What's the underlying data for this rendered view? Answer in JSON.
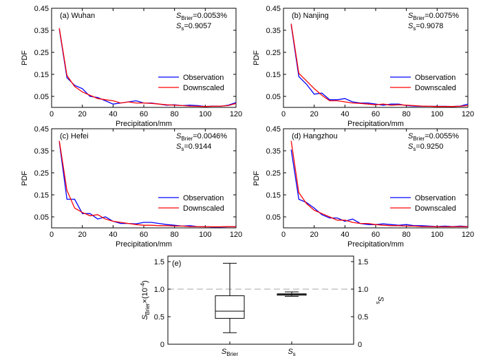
{
  "colors": {
    "observation": "#0000ff",
    "downscaled": "#ff0000",
    "axis": "#000000",
    "reference": "#a6a6a6"
  },
  "chart_data": [
    {
      "type": "line",
      "panel_label": "(a) Wuhan",
      "ann_brier_prefix": "S",
      "ann_brier_sub": "Brier",
      "ann_brier_value": "=0.0053%",
      "ann_ss_prefix": "S",
      "ann_ss_sub": "s",
      "ann_ss_value": "=0.9057",
      "xlabel": "Precipitation/mm",
      "ylabel": "PDF",
      "xlim": [
        0,
        120
      ],
      "ylim": [
        0,
        0.45
      ],
      "xticks": [
        0,
        20,
        40,
        60,
        80,
        100,
        120
      ],
      "yticks": [
        0.05,
        0.15,
        0.25,
        0.35,
        0.45
      ],
      "legend_position": "right",
      "series": [
        {
          "name": "Observation",
          "x": [
            5,
            10,
            15,
            20,
            25,
            30,
            35,
            40,
            45,
            50,
            55,
            60,
            65,
            70,
            75,
            80,
            85,
            90,
            95,
            100,
            105,
            110,
            115,
            120
          ],
          "y": [
            0.355,
            0.135,
            0.1,
            0.085,
            0.05,
            0.045,
            0.03,
            0.015,
            0.02,
            0.025,
            0.03,
            0.02,
            0.02,
            0.015,
            0.01,
            0.012,
            0.008,
            0.01,
            0.008,
            0.004,
            0.006,
            0.005,
            0.01,
            0.022
          ]
        },
        {
          "name": "Downscaled",
          "x": [
            5,
            10,
            15,
            20,
            25,
            30,
            35,
            40,
            45,
            50,
            55,
            60,
            65,
            70,
            75,
            80,
            85,
            90,
            95,
            100,
            105,
            110,
            115,
            120
          ],
          "y": [
            0.36,
            0.145,
            0.095,
            0.07,
            0.055,
            0.04,
            0.035,
            0.03,
            0.02,
            0.025,
            0.02,
            0.02,
            0.018,
            0.015,
            0.012,
            0.01,
            0.008,
            0.006,
            0.005,
            0.004,
            0.005,
            0.006,
            0.008,
            0.018
          ]
        }
      ]
    },
    {
      "type": "line",
      "panel_label": "(b) Nanjing",
      "ann_brier_prefix": "S",
      "ann_brier_sub": "Brier",
      "ann_brier_value": "=0.0075%",
      "ann_ss_prefix": "S",
      "ann_ss_sub": "s",
      "ann_ss_value": "=0.9078",
      "xlabel": "Precipitation/mm",
      "ylabel": "PDF",
      "xlim": [
        0,
        120
      ],
      "ylim": [
        0,
        0.45
      ],
      "xticks": [
        0,
        20,
        40,
        60,
        80,
        100,
        120
      ],
      "yticks": [
        0.05,
        0.15,
        0.25,
        0.35,
        0.45
      ],
      "legend_position": "right",
      "series": [
        {
          "name": "Observation",
          "x": [
            5,
            10,
            15,
            20,
            25,
            30,
            35,
            40,
            45,
            50,
            55,
            60,
            65,
            70,
            75,
            80,
            85,
            90,
            95,
            100,
            105,
            110,
            115,
            120
          ],
          "y": [
            0.375,
            0.14,
            0.105,
            0.06,
            0.065,
            0.035,
            0.035,
            0.04,
            0.025,
            0.02,
            0.02,
            0.015,
            0.01,
            0.015,
            0.015,
            0.008,
            0.006,
            0.005,
            0.005,
            0.005,
            0.005,
            0.004,
            0.006,
            0.015
          ]
        },
        {
          "name": "Downscaled",
          "x": [
            5,
            10,
            15,
            20,
            25,
            30,
            35,
            40,
            45,
            50,
            55,
            60,
            65,
            70,
            75,
            80,
            85,
            90,
            95,
            100,
            105,
            110,
            115,
            120
          ],
          "y": [
            0.38,
            0.155,
            0.12,
            0.085,
            0.055,
            0.03,
            0.03,
            0.025,
            0.02,
            0.018,
            0.015,
            0.012,
            0.015,
            0.01,
            0.012,
            0.01,
            0.008,
            0.006,
            0.005,
            0.004,
            0.004,
            0.004,
            0.005,
            0.008
          ]
        }
      ]
    },
    {
      "type": "line",
      "panel_label": "(c) Hefei",
      "ann_brier_prefix": "S",
      "ann_brier_sub": "Brier",
      "ann_brier_value": "=0.0046%",
      "ann_ss_prefix": "S",
      "ann_ss_sub": "s",
      "ann_ss_value": "=0.9144",
      "xlabel": "Precipitation/mm",
      "ylabel": "PDF",
      "xlim": [
        0,
        120
      ],
      "ylim": [
        0,
        0.45
      ],
      "xticks": [
        0,
        20,
        40,
        60,
        80,
        100,
        120
      ],
      "yticks": [
        0.05,
        0.15,
        0.25,
        0.35,
        0.45
      ],
      "legend_position": "right",
      "series": [
        {
          "name": "Observation",
          "x": [
            5,
            10,
            15,
            20,
            25,
            30,
            35,
            40,
            45,
            50,
            55,
            60,
            65,
            70,
            75,
            80,
            85,
            90,
            95,
            100,
            105,
            110,
            115,
            120
          ],
          "y": [
            0.39,
            0.13,
            0.13,
            0.065,
            0.065,
            0.04,
            0.05,
            0.03,
            0.02,
            0.02,
            0.018,
            0.025,
            0.025,
            0.02,
            0.015,
            0.012,
            0.008,
            0.01,
            0.006,
            0.005,
            0.004,
            0.004,
            0.005,
            0.006
          ]
        },
        {
          "name": "Downscaled",
          "x": [
            5,
            10,
            15,
            20,
            25,
            30,
            35,
            40,
            45,
            50,
            55,
            60,
            65,
            70,
            75,
            80,
            85,
            90,
            95,
            100,
            105,
            110,
            115,
            120
          ],
          "y": [
            0.395,
            0.17,
            0.09,
            0.07,
            0.055,
            0.06,
            0.04,
            0.03,
            0.025,
            0.02,
            0.015,
            0.012,
            0.012,
            0.01,
            0.01,
            0.008,
            0.008,
            0.006,
            0.006,
            0.005,
            0.005,
            0.005,
            0.006,
            0.005
          ]
        }
      ]
    },
    {
      "type": "line",
      "panel_label": "(d) Hangzhou",
      "ann_brier_prefix": "S",
      "ann_brier_sub": "Brier",
      "ann_brier_value": "=0.0055%",
      "ann_ss_prefix": "S",
      "ann_ss_sub": "s",
      "ann_ss_value": "=0.9250",
      "xlabel": "Precipitation/mm",
      "ylabel": "PDF",
      "xlim": [
        0,
        120
      ],
      "ylim": [
        0,
        0.45
      ],
      "xticks": [
        0,
        20,
        40,
        60,
        80,
        100,
        120
      ],
      "yticks": [
        0.05,
        0.15,
        0.25,
        0.35,
        0.45
      ],
      "legend_position": "right",
      "series": [
        {
          "name": "Observation",
          "x": [
            5,
            10,
            15,
            20,
            25,
            30,
            35,
            40,
            45,
            50,
            55,
            60,
            65,
            70,
            75,
            80,
            85,
            90,
            95,
            100,
            105,
            110,
            115,
            120
          ],
          "y": [
            0.355,
            0.13,
            0.115,
            0.09,
            0.06,
            0.045,
            0.045,
            0.03,
            0.04,
            0.02,
            0.015,
            0.015,
            0.018,
            0.015,
            0.012,
            0.015,
            0.01,
            0.01,
            0.008,
            0.006,
            0.008,
            0.006,
            0.008,
            0.006
          ]
        },
        {
          "name": "Downscaled",
          "x": [
            5,
            10,
            15,
            20,
            25,
            30,
            35,
            40,
            45,
            50,
            55,
            60,
            65,
            70,
            75,
            80,
            85,
            90,
            95,
            100,
            105,
            110,
            115,
            120
          ],
          "y": [
            0.395,
            0.16,
            0.11,
            0.08,
            0.065,
            0.05,
            0.035,
            0.035,
            0.025,
            0.02,
            0.02,
            0.015,
            0.012,
            0.01,
            0.01,
            0.008,
            0.008,
            0.006,
            0.006,
            0.005,
            0.005,
            0.005,
            0.006,
            0.005
          ]
        }
      ]
    },
    {
      "type": "box",
      "panel_label": "(e)",
      "ylabel_left_prefix": "S",
      "ylabel_left_sub": "Brier",
      "ylabel_left_suffix": "×(10",
      "ylabel_left_sup": "-4",
      "ylabel_left_close": ")",
      "ylabel_right_prefix": "S",
      "ylabel_right_sub": "s",
      "ylim": [
        0,
        1.6
      ],
      "yticks_left": [
        "0",
        "0.5",
        "1.0",
        "1.5"
      ],
      "yticks_right": [
        "0",
        "0.5",
        "1.0",
        "1.5"
      ],
      "ytick_values": [
        0,
        0.5,
        1.0,
        1.5
      ],
      "reference_line": 1.0,
      "boxes": [
        {
          "category_prefix": "S",
          "category_sub": "Brier",
          "min": 0.21,
          "q1": 0.47,
          "median": 0.6,
          "q3": 0.88,
          "max": 1.47
        },
        {
          "category_prefix": "S",
          "category_sub": "s",
          "min": 0.87,
          "q1": 0.89,
          "median": 0.905,
          "q3": 0.915,
          "max": 0.95
        }
      ]
    }
  ]
}
